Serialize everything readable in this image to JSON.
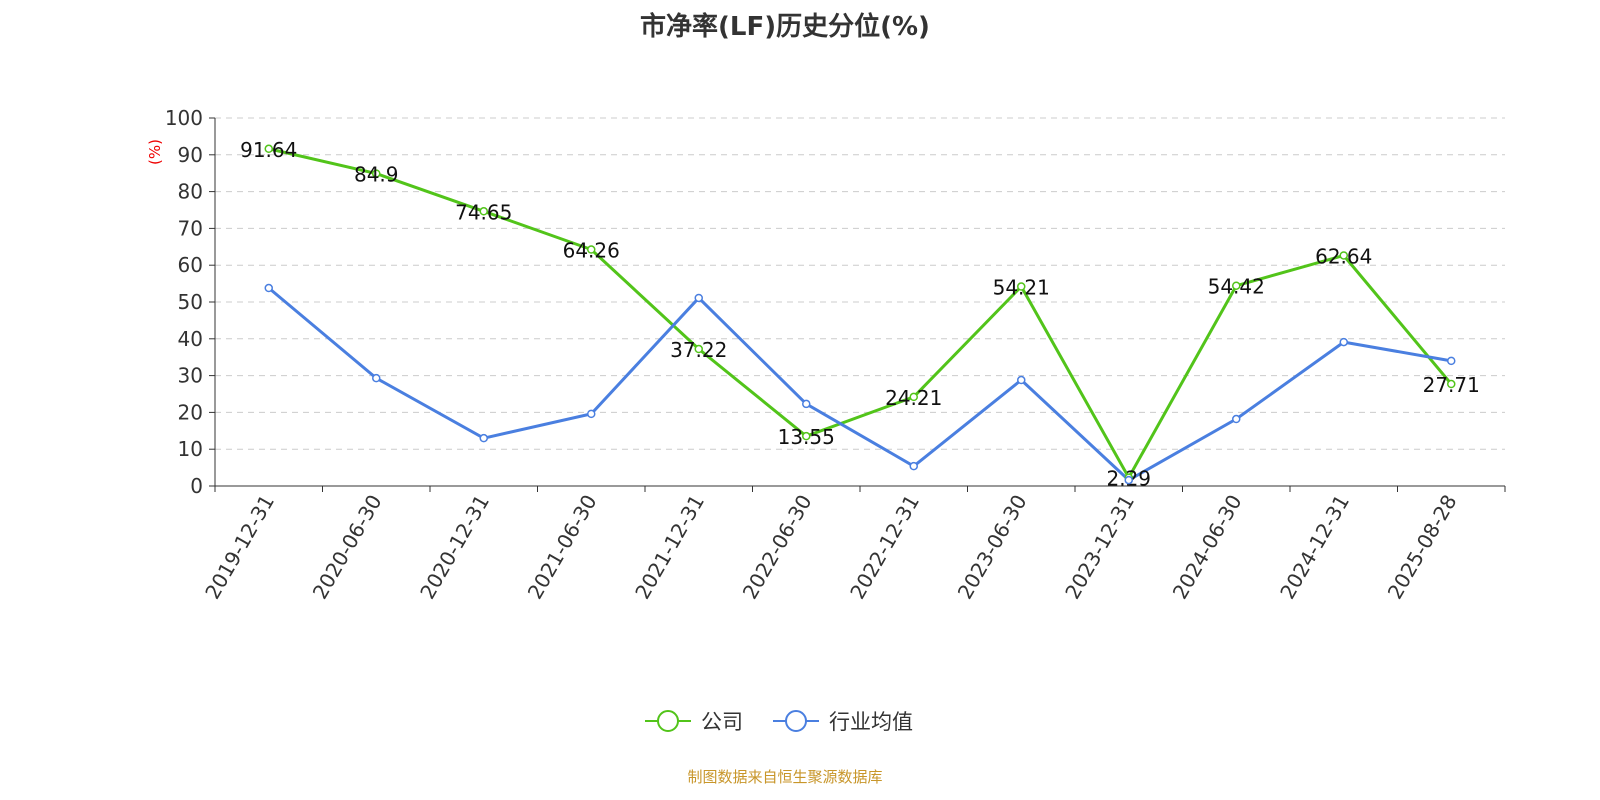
{
  "chart_data": {
    "type": "line",
    "title": "市净率(LF)历史分位(%)",
    "ylabel": "(%)",
    "xlabel": "",
    "ylim": [
      0,
      100
    ],
    "yticks": [
      0,
      10,
      20,
      30,
      40,
      50,
      60,
      70,
      80,
      90,
      100
    ],
    "grid": true,
    "legend_position": "bottom",
    "categories": [
      "2019-12-31",
      "2020-06-30",
      "2020-12-31",
      "2021-06-30",
      "2021-12-31",
      "2022-06-30",
      "2022-12-31",
      "2023-06-30",
      "2023-12-31",
      "2024-06-30",
      "2024-12-31",
      "2025-08-28"
    ],
    "series": [
      {
        "name": "公司",
        "color": "#52c41a",
        "labels": true,
        "values": [
          91.64,
          84.9,
          74.65,
          64.26,
          37.22,
          13.55,
          24.21,
          54.21,
          2.29,
          54.42,
          62.64,
          27.71
        ]
      },
      {
        "name": "行业均值",
        "color": "#4a7fe0",
        "labels": false,
        "values": [
          53.8,
          29.3,
          13.0,
          19.6,
          51.1,
          22.3,
          5.4,
          28.8,
          1.6,
          18.2,
          39.1,
          34.0
        ]
      }
    ]
  },
  "source": "制图数据来自恒生聚源数据库"
}
